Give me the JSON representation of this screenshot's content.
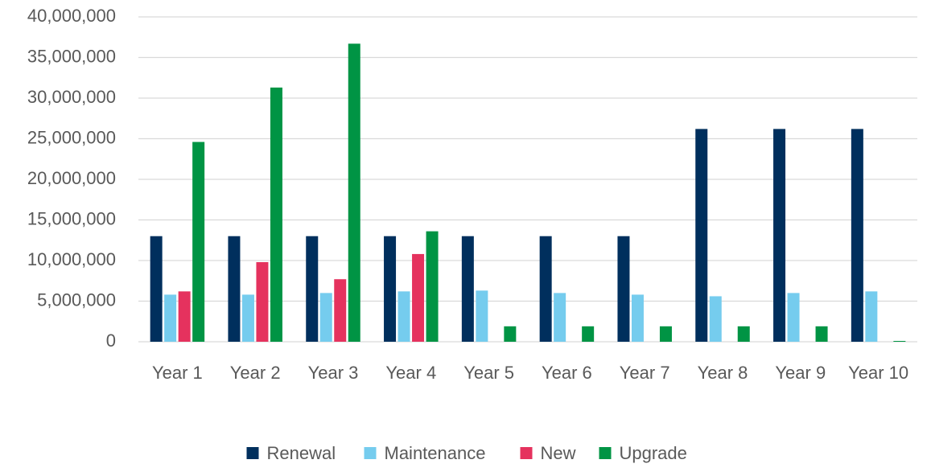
{
  "chart_data": {
    "type": "bar",
    "categories": [
      "Year 1",
      "Year 2",
      "Year 3",
      "Year 4",
      "Year 5",
      "Year 6",
      "Year 7",
      "Year 8",
      "Year 9",
      "Year 10"
    ],
    "series": [
      {
        "name": "Renewal",
        "color": "#002f5d",
        "values": [
          13.0,
          13.0,
          13.0,
          13.0,
          13.0,
          13.0,
          13.0,
          26.2,
          26.2,
          26.2
        ]
      },
      {
        "name": "Maintenance",
        "color": "#75ccee",
        "values": [
          5.8,
          5.8,
          6.0,
          6.2,
          6.3,
          6.0,
          5.8,
          5.6,
          6.0,
          6.2
        ]
      },
      {
        "name": "New",
        "color": "#e5325e",
        "values": [
          6.2,
          9.8,
          7.7,
          10.8,
          0,
          0,
          0,
          0,
          0,
          0
        ]
      },
      {
        "name": "Upgrade",
        "color": "#009444",
        "values": [
          24.6,
          31.3,
          36.7,
          13.6,
          1.9,
          1.9,
          1.9,
          1.9,
          1.9,
          0.1
        ]
      }
    ],
    "ylim": [
      0,
      40
    ],
    "yticks": [
      0,
      {
        "value": 5,
        "label": "5,000,000"
      },
      {
        "value": 10,
        "label": "10,000,000"
      },
      {
        "value": 15,
        "label": "15,000,000"
      },
      {
        "value": 20,
        "label": "20,000,000"
      },
      {
        "value": 25,
        "label": "25,000,000"
      },
      {
        "value": 30,
        "label": "30,000,000"
      },
      {
        "value": 35,
        "label": "35,000,000"
      },
      {
        "value": 40,
        "label": "40,000,000"
      }
    ],
    "grid": true,
    "legend": "bottom"
  }
}
